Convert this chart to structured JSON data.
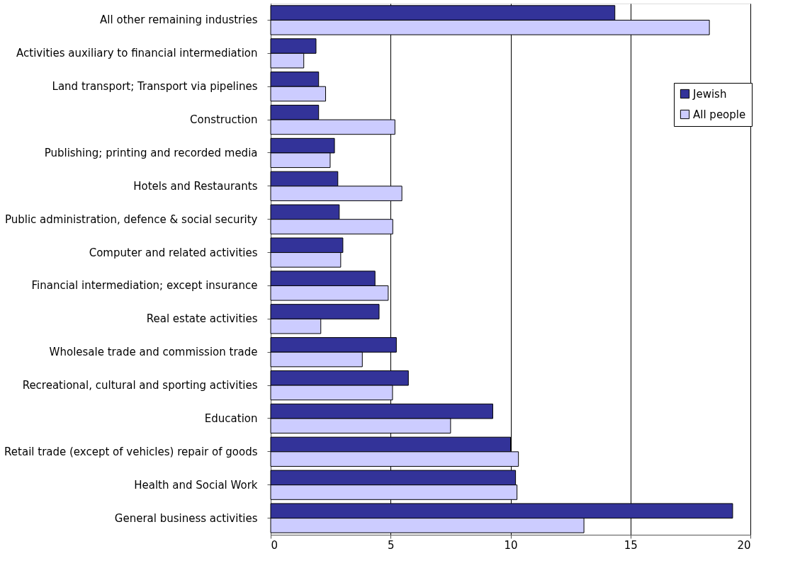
{
  "chart_data": {
    "type": "bar",
    "orientation": "horizontal",
    "categories": [
      "All other remaining industries",
      "Activities auxiliary to financial intermediation",
      "Land transport; Transport via pipelines",
      "Construction",
      "Publishing; printing and recorded media",
      "Hotels and Restaurants",
      "Public administration, defence & social security",
      "Computer and related activities",
      "Financial intermediation; except insurance",
      "Real estate activities",
      "Wholesale trade and commission trade",
      "Recreational, cultural and sporting activities",
      "Education",
      "Retail trade (except of vehicles) repair of goods",
      "Health and Social Work",
      "General business activities"
    ],
    "series": [
      {
        "name": "Jewish",
        "color": "#333399",
        "values": [
          14.35,
          1.89,
          2.0,
          2.0,
          2.66,
          2.8,
          2.86,
          3.01,
          4.35,
          4.52,
          5.24,
          5.74,
          9.26,
          10.0,
          10.21,
          19.26
        ]
      },
      {
        "name": "All people",
        "color": "#ccccff",
        "values": [
          18.29,
          1.38,
          2.29,
          5.18,
          2.48,
          5.47,
          5.09,
          2.92,
          4.9,
          2.09,
          3.82,
          5.08,
          7.5,
          10.33,
          10.27,
          13.06
        ]
      }
    ],
    "xlim": [
      0,
      20
    ],
    "xticks": [
      0,
      5,
      10,
      15,
      20
    ],
    "grid": "x",
    "legend": "top right"
  }
}
